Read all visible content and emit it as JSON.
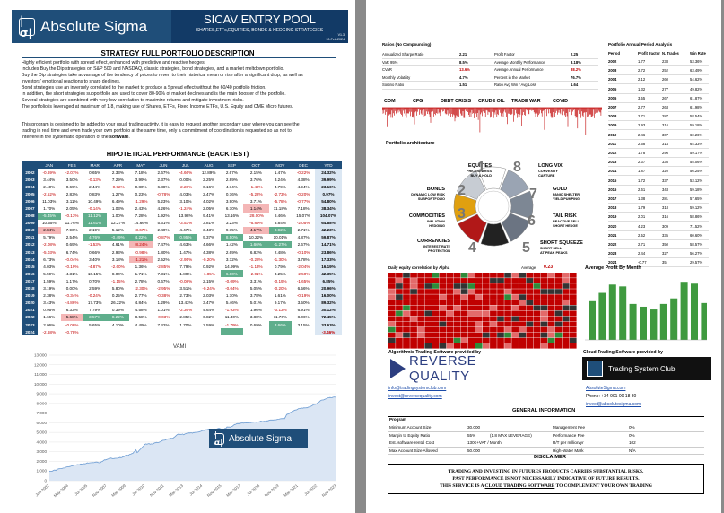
{
  "header": {
    "brand": "Absolute Sigma",
    "title": "SICAV ENTRY POOL",
    "subtitle": "SHARES,ETFs,EQUITIES, BONDS & HEDGING STRATEGIES",
    "version": "V1.3",
    "date": "10-Feb-2024"
  },
  "strategy": {
    "heading": "STRATEGY FULL PORTFOLIO DESCRIPTION",
    "lines": [
      "Highly efficient portfolio with spread effect, enhanced with predictive and reactive hedges.",
      "Includes Buy the Dip strategies on S&P 500 and NASDAQ, classic strategies, bond strategies, and a market meltdown portfolio.",
      "Buy the Dip strategies take advantage of the tendency of prices to revert to their historical mean or rise after a significant drop, as well as",
      "investors' emotional reactions to sharp declines.",
      "Bond strategies use an inversely correlated to the market to produce a Spread effect without the 60/40 portfolio friction.",
      "In addition, the short strategies subportfolio are used to cover 80-90% of market declines and is the main booster of the portfolio.",
      "Several strategies are combined with very low correlation to maximize returns and mitigate investment risks.",
      "The portfolio is leveraged at maximum of 1.8, making use of Shares, ETFs, Fixed Income ETFs, U.S. Equity and CME Micro futures."
    ],
    "lines2": [
      "This program is designed to be added to your usual trading activity, it is easy to request another secondary user where you can see the",
      "trading in real time and even trade your own portfolio at the same time, only a commitment of coordination is requested so as not to"
    ],
    "line3_pre": "interfere in the systematic operation of the ",
    "line3_bold": "software",
    "line3_post": "."
  },
  "performance": {
    "heading": "HIPOTETICAL PERFORMANCE (BACKTEST)",
    "columns": [
      "",
      "JAN",
      "FEB",
      "MAR",
      "APR",
      "MAY",
      "JUN",
      "JUL",
      "AUG",
      "SEP",
      "OCT",
      "NOV",
      "DEC",
      "YTD"
    ],
    "rows": [
      [
        "2002",
        "-0.69%",
        "-2.07%",
        "0.65%",
        "2.33%",
        "7.18%",
        "2.67%",
        "-4.66%",
        "12.89%",
        "2.67%",
        "2.15%",
        "1.47%",
        "-0.22%",
        "24.32%"
      ],
      [
        "2003",
        "3.44%",
        "3.50%",
        "-0.13%",
        "7.29%",
        "3.99%",
        "2.37%",
        "0.00%",
        "2.25%",
        "2.89%",
        "3.76%",
        "3.24%",
        "4.38%",
        "39.99%"
      ],
      [
        "2004",
        "2.40%",
        "0.69%",
        "2.44%",
        "-0.92%",
        "0.80%",
        "6.88%",
        "-2.28%",
        "0.16%",
        "4.74%",
        "-1.49%",
        "4.79%",
        "4.94%",
        "23.16%"
      ],
      [
        "2005",
        "-2.52%",
        "2.83%",
        "0.83%",
        "1.27%",
        "0.23%",
        "-0.78%",
        "4.03%",
        "2.47%",
        "0.76%",
        "-5.22%",
        "-2.73%",
        "-0.20%",
        "0.97%"
      ],
      [
        "2006",
        "11.03%",
        "3.11%",
        "10.49%",
        "6.49%",
        "-1.29%",
        "5.23%",
        "3.10%",
        "4.02%",
        "3.90%",
        "3.71%",
        "-5.78%",
        "-0.77%",
        "54.80%"
      ],
      [
        "2007",
        "1.70%",
        "2.05%",
        "-0.14%",
        "1.03%",
        "2.43%",
        "4.26%",
        "-1.24%",
        "2.05%",
        "6.70%",
        "1.14%",
        "11.18%",
        "7.18%",
        "38.34%"
      ],
      [
        "2008",
        "-5.45%",
        "-0.13%",
        "11.12%",
        "1.00%",
        "7.28%",
        "1.92%",
        "13.98%",
        "9.41%",
        "13.16%",
        "-28.00%",
        "8.46%",
        "15.07%",
        "104.07%"
      ],
      [
        "2009",
        "10.55%",
        "11.76%",
        "11.61%",
        "12.27%",
        "14.66%",
        "5.61%",
        "-3.53%",
        "3.81%",
        "3.23%",
        "-6.89%",
        "3.84%",
        "-2.05%",
        "64.88%"
      ],
      [
        "2010",
        "2.84%",
        "7.90%",
        "2.19%",
        "5.12%",
        "-3.67%",
        "2.40%",
        "4.47%",
        "3.43%",
        "9.75%",
        "4.17%",
        "0.92%",
        "2.71%",
        "42.23%"
      ],
      [
        "2011",
        "5.79%",
        "2.54%",
        "4.76%",
        "-0.49%",
        "4.22%",
        "-0.87%",
        "0.95%",
        "9.37%",
        "8.50%",
        "10.22%",
        "10.01%",
        "4.87%",
        "59.87%"
      ],
      [
        "2012",
        "-2.08%",
        "0.69%",
        "-1.53%",
        "4.61%",
        "-8.24%",
        "7.47%",
        "4.63%",
        "4.66%",
        "1.42%",
        "1.66%",
        "-1.27%",
        "2.67%",
        "14.71%"
      ],
      [
        "2013",
        "-5.03%",
        "6.74%",
        "0.66%",
        "2.93%",
        "-0.98%",
        "1.80%",
        "1.47%",
        "4.38%",
        "2.69%",
        "6.82%",
        "2.48%",
        "-0.10%",
        "23.86%"
      ],
      [
        "2014",
        "6.73%",
        "-0.04%",
        "3.40%",
        "3.18%",
        "-1.21%",
        "2.52%",
        "-2.95%",
        "-0.20%",
        "3.72%",
        "-0.28%",
        "-1.30%",
        "3.78%",
        "17.33%"
      ],
      [
        "2015",
        "4.03%",
        "-0.19%",
        "-4.87%",
        "-2.60%",
        "1.36%",
        "-2.85%",
        "7.79%",
        "0.92%",
        "14.99%",
        "-1.13%",
        "0.79%",
        "-2.04%",
        "16.19%"
      ],
      [
        "2016",
        "5.59%",
        "4.31%",
        "10.15%",
        "8.00%",
        "1.71%",
        "7.31%",
        "1.80%",
        "-1.85%",
        "6.60%",
        "-2.01%",
        "3.25%",
        "-2.50%",
        "42.35%"
      ],
      [
        "2017",
        "1.59%",
        "1.17%",
        "0.70%",
        "-1.15%",
        "2.78%",
        "0.67%",
        "-0.08%",
        "2.15%",
        "-0.09%",
        "3.31%",
        "-0.19%",
        "-1.65%",
        "6.85%"
      ],
      [
        "2018",
        "3.19%",
        "0.00%",
        "2.59%",
        "5.80%",
        "-2.30%",
        "-2.95%",
        "3.51%",
        "-0.24%",
        "-0.04%",
        "5.05%",
        "-0.20%",
        "6.56%",
        "20.96%"
      ],
      [
        "2019",
        "2.38%",
        "-0.34%",
        "-0.24%",
        "0.25%",
        "2.77%",
        "-0.38%",
        "2.73%",
        "2.03%",
        "1.70%",
        "3.78%",
        "1.61%",
        "-0.19%",
        "16.00%"
      ],
      [
        "2020",
        "3.43%",
        "-4.86%",
        "17.73%",
        "26.22%",
        "4.84%",
        "1.29%",
        "13.43%",
        "3.47%",
        "5.46%",
        "5.01%",
        "9.17%",
        "3.50%",
        "89.32%"
      ],
      [
        "2021",
        "0.95%",
        "6.33%",
        "7.79%",
        "0.39%",
        "4.58%",
        "1.01%",
        "-2.36%",
        "4.64%",
        "-1.93%",
        "1.96%",
        "-0.13%",
        "6.91%",
        "30.12%"
      ],
      [
        "2022",
        "1.66%",
        "5.68%",
        "3.57%",
        "8.22%",
        "8.58%",
        "-0.03%",
        "2.85%",
        "6.82%",
        "11.40%",
        "3.88%",
        "11.76%",
        "8.06%",
        "72.45%"
      ],
      [
        "2023",
        "2.06%",
        "-0.08%",
        "5.65%",
        "4.10%",
        "4.49%",
        "7.42%",
        "1.70%",
        "2.59%",
        "-1.79%",
        "0.69%",
        "3.66%",
        "3.15%",
        "33.63%"
      ],
      [
        "2024",
        "-2.68%",
        "-0.78%",
        "",
        "",
        "",
        "",
        "",
        "",
        "",
        "",
        "",
        "",
        "-3.46%"
      ]
    ],
    "highlight_green": [
      [
        6,
        1
      ],
      [
        6,
        3
      ],
      [
        7,
        3
      ],
      [
        8,
        11
      ],
      [
        9,
        3
      ],
      [
        9,
        4
      ],
      [
        9,
        5
      ],
      [
        9,
        7
      ],
      [
        9,
        9
      ],
      [
        10,
        10
      ],
      [
        10,
        11
      ],
      [
        14,
        9
      ],
      [
        20,
        3
      ],
      [
        20,
        4
      ],
      [
        21,
        11
      ],
      [
        22,
        9
      ],
      [
        22,
        11
      ]
    ],
    "highlight_red": [
      [
        5,
        10
      ],
      [
        8,
        1
      ],
      [
        8,
        10
      ],
      [
        9,
        7
      ],
      [
        10,
        5
      ],
      [
        12,
        5
      ],
      [
        20,
        2
      ]
    ]
  },
  "vami": {
    "title": "VAMI",
    "y_ticks": [
      "13,000",
      "12,000",
      "11,000",
      "10,000",
      "9,000",
      "8,000",
      "7,000",
      "6,000",
      "5,000",
      "4,000",
      "3,000",
      "2,000",
      "1,000",
      "0"
    ],
    "x_ticks": [
      "Jan-2002",
      "May-2004",
      "Jul-2005",
      "Nov-2007",
      "Mar-2009",
      "Jul-2010",
      "Nov-2011",
      "Mar-2013",
      "Jul-2014",
      "Nov-2015",
      "Mar-2017",
      "Jul-2018",
      "Nov-2019",
      "Mar-2021",
      "Jul-2022",
      "Nov-2023"
    ]
  },
  "ratios": {
    "heading": "Ratios (No Compounding)",
    "left": [
      [
        "Annualized Sharpe Ratio",
        "2.21"
      ],
      [
        "VaR 95%",
        "8.5%"
      ],
      [
        "CVaR",
        "13.6%"
      ],
      [
        "Monthly Volatility",
        "4.7%"
      ],
      [
        "Sortino Ratio",
        "1.51"
      ]
    ],
    "right": [
      [
        "Profit Factor",
        "2.25"
      ],
      [
        "Average Monthly Performance",
        "3.18%"
      ],
      [
        "Average Annual Performance",
        "38.2%"
      ],
      [
        "Percent in the Market",
        "76.7%"
      ],
      [
        "Ratio Avg Win / Avg Loss",
        "1.64"
      ]
    ]
  },
  "crisis": [
    "COM",
    "CFG",
    "DEBT CRISIS",
    "CRUDE OIL",
    "TRADE WAR",
    "COVID"
  ],
  "annual": {
    "heading": "Portfolio Annual Period Analysis",
    "columns": [
      "Period",
      "Profit Factor",
      "N. Trades",
      "Win Rate"
    ],
    "rows": [
      [
        "2002",
        "1.77",
        "238",
        "53.36%"
      ],
      [
        "2003",
        "2.72",
        "252",
        "63.49%"
      ],
      [
        "2004",
        "2.12",
        "260",
        "54.62%"
      ],
      [
        "2005",
        "1.32",
        "277",
        "49.82%"
      ],
      [
        "2006",
        "3.55",
        "267",
        "61.87%"
      ],
      [
        "2007",
        "2.77",
        "263",
        "61.98%"
      ],
      [
        "2008",
        "2.71",
        "287",
        "58.54%"
      ],
      [
        "2009",
        "2.93",
        "316",
        "59.18%"
      ],
      [
        "2010",
        "2.46",
        "307",
        "60.26%"
      ],
      [
        "2011",
        "2.68",
        "314",
        "64.33%"
      ],
      [
        "2012",
        "1.78",
        "296",
        "59.17%"
      ],
      [
        "2013",
        "2.37",
        "336",
        "55.06%"
      ],
      [
        "2014",
        "1.87",
        "320",
        "56.25%"
      ],
      [
        "2015",
        "1.72",
        "337",
        "53.12%"
      ],
      [
        "2016",
        "2.61",
        "343",
        "59.18%"
      ],
      [
        "2017",
        "1.38",
        "281",
        "57.65%"
      ],
      [
        "2018",
        "1.79",
        "318",
        "59.12%"
      ],
      [
        "2019",
        "2.01",
        "316",
        "58.86%"
      ],
      [
        "2020",
        "4.23",
        "309",
        "71.52%"
      ],
      [
        "2021",
        "2.52",
        "335",
        "60.60%"
      ],
      [
        "2022",
        "2.71",
        "350",
        "58.57%"
      ],
      [
        "2023",
        "2.44",
        "327",
        "56.27%"
      ],
      [
        "2024",
        "-0.77",
        "35",
        "29.57%"
      ]
    ]
  },
  "arch": {
    "heading": "Portfolio architecture",
    "items": [
      {
        "num": "1",
        "title": "EQUITIES",
        "sub": "FRICTIONLESS\nBUY & HOLD"
      },
      {
        "num": "2",
        "title": "BONDS",
        "sub": "DYNAMIC LOW RISK\nSUBPORTFOLIO"
      },
      {
        "num": "3",
        "title": "COMMODITIES",
        "sub": "INFLATION\nHEDGING"
      },
      {
        "num": "4",
        "title": "CURRENCIES",
        "sub": "INTEREST RATE\nPROTECTION"
      },
      {
        "num": "5",
        "title": "SHORT SQUEEZE",
        "sub": "SHORT SELL\nAT PEAK PEAKS"
      },
      {
        "num": "6",
        "title": "TAIL RISK",
        "sub": "REACTIVE SELL\nSHORT HEDGE"
      },
      {
        "num": "7",
        "title": "GOLD",
        "sub": "PANIC SHELTER\nYIELD PUMPING"
      },
      {
        "num": "8",
        "title": "LONG VIX",
        "sub": "CONVEXITY\nCAPTURE"
      }
    ]
  },
  "corr": {
    "heading": "Daily equity correlation by Alpha",
    "avg_label": "Average",
    "avg": "0.23"
  },
  "avg_month": {
    "heading": "Average Profit By Month",
    "values": [
      4.2,
      5.1,
      6.0,
      5.8,
      3.9,
      3.6,
      3.3,
      3.9,
      4.5,
      6.3,
      6.1,
      4.0
    ]
  },
  "providers": {
    "algo_label": "Algorithmic Trading Software provided by",
    "rq": "REVERSE QUALITY",
    "cloud_label": "Cloud Trading Software provided by",
    "tsc": "Trading System Club"
  },
  "contacts": {
    "left": [
      "info@tradingsystemclub.com",
      "invest@reversequality.com"
    ],
    "right_site": "AbsoluteSigma.com",
    "phone": "Phone: +34 901 00 18 80",
    "email": "invest@absolutesigma.com"
  },
  "general": {
    "heading": "GENERAL INFORMATION",
    "program": "Program",
    "left": [
      [
        "Minimum Account Size",
        "30.000",
        ""
      ],
      [
        "Margin to Equity Ratio",
        "55%",
        "(1.8 MAX LEVERAGE)"
      ],
      [
        "Est. software rental Cost",
        "130€+VAT / Month",
        ""
      ],
      [
        "Max Account Size Allowed",
        "50.000",
        ""
      ]
    ],
    "right": [
      [
        "Management Fee",
        "0%"
      ],
      [
        "Performance Fee",
        "0%"
      ],
      [
        "R/T per million/yr",
        "102"
      ],
      [
        "High-Water Mark",
        "N/A"
      ]
    ]
  },
  "disclaimer": {
    "heading": "DISCLAIMER",
    "l1": "TRADING AND INVESTING IN FUTURES PRODUCTS CARRIES SUBSTANTIAL RISKS.",
    "l2": "PAST PERFORMANCE IS NOT NECESSARILY INDICATIVE OF FUTURE RESULTS.",
    "l3a": "THIS SERVICE IS A ",
    "l3b": "CLOUD TRADING SOFTWARE",
    "l3c": " TO COMPLEMENT YOUR OWN TRADING"
  },
  "colors": {
    "navy": "#1f4e79",
    "green": "#2e8b3a",
    "red": "#c00000"
  }
}
